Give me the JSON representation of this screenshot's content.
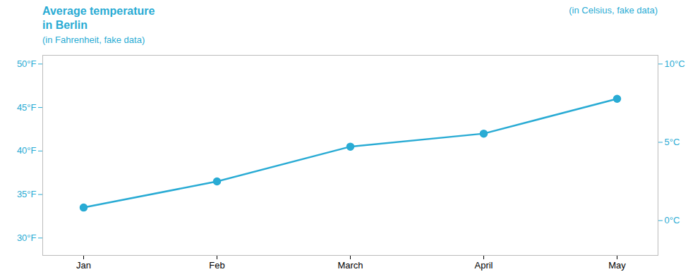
{
  "chart_data": {
    "type": "line",
    "title": "Average temperature\nin Berlin",
    "subtitle": "(in Fahrenheit, fake data)",
    "annotations": [
      "(in Celsius, fake data)"
    ],
    "categories": [
      "Jan",
      "Feb",
      "March",
      "April",
      "May"
    ],
    "values": [
      33.5,
      36.5,
      40.5,
      42.0,
      46.0
    ],
    "color": "#29ABD4",
    "marker": "circle",
    "ylim": [
      28,
      51
    ],
    "yticks": [
      {
        "value": 30,
        "label": "30°F"
      },
      {
        "value": 35,
        "label": "35°F"
      },
      {
        "value": 40,
        "label": "40°F"
      },
      {
        "value": 45,
        "label": "45°F"
      },
      {
        "value": 50,
        "label": "50°F"
      }
    ],
    "y2lim": [
      -2.2222222222222223,
      10.555555555555555
    ],
    "y2ticks": [
      {
        "value": 0,
        "label": "0°C"
      },
      {
        "value": 5,
        "label": "5°C"
      },
      {
        "value": 10,
        "label": "10°C"
      }
    ],
    "grid": false
  }
}
